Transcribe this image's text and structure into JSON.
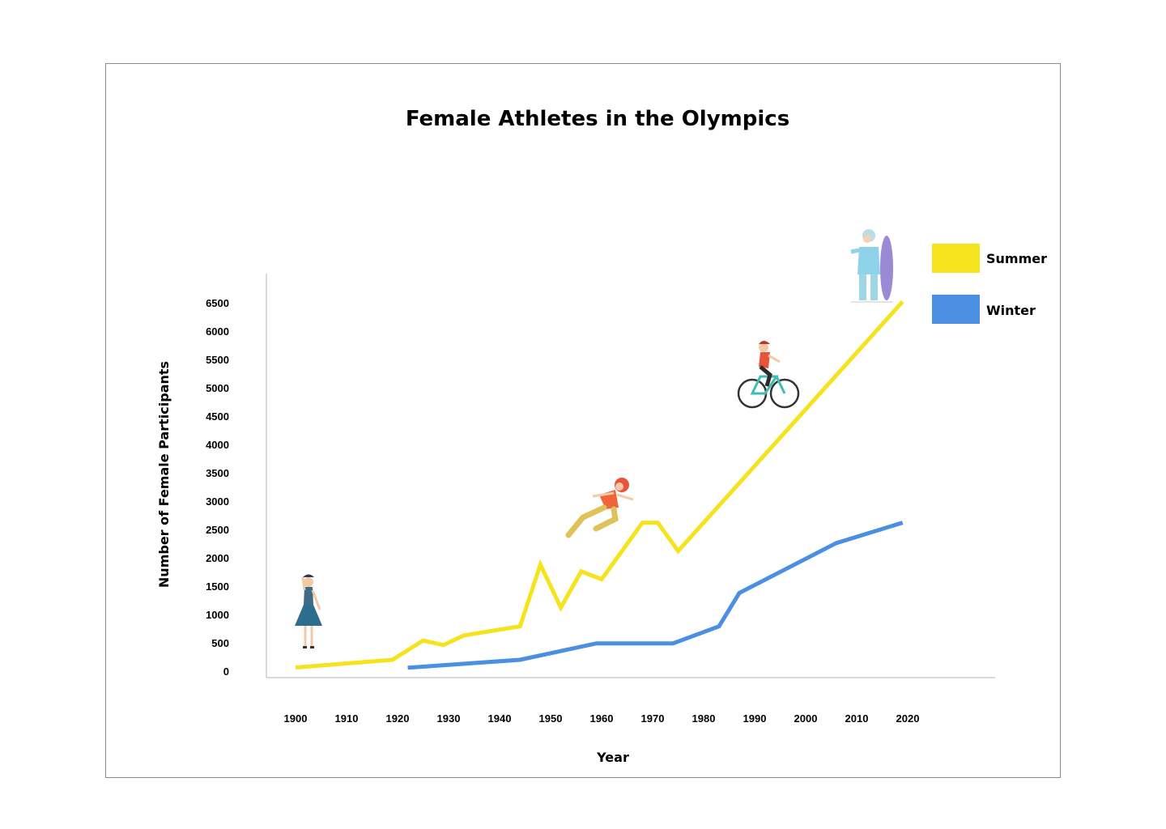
{
  "chart_data": {
    "type": "line",
    "title": "Female Athletes in the Olympics",
    "xlabel": "Year",
    "ylabel": "Number of Female Participants",
    "xlim": [
      1900,
      2020
    ],
    "ylim": [
      0,
      6500
    ],
    "x_ticks": [
      "1900",
      "1910",
      "1920",
      "1930",
      "1940",
      "1950",
      "1960",
      "1970",
      "1980",
      "1990",
      "2000",
      "2010",
      "2020"
    ],
    "y_ticks": [
      "0",
      "500",
      "1000",
      "1500",
      "2000",
      "2500",
      "3000",
      "3500",
      "4000",
      "4500",
      "5000",
      "5500",
      "6000",
      "6500"
    ],
    "grid": false,
    "legend_position": "top-right",
    "series": [
      {
        "name": "Summer",
        "color": "#f5e31d",
        "x": [
          1900,
          1919,
          1925,
          1929,
          1933,
          1944,
          1948,
          1952,
          1956,
          1960,
          1968,
          1971,
          1975,
          2019
        ],
        "y": [
          65,
          200,
          540,
          460,
          630,
          790,
          1880,
          1120,
          1760,
          1620,
          2620,
          2620,
          2120,
          6520
        ]
      },
      {
        "name": "Winter",
        "color": "#4a8fe2",
        "x": [
          1922,
          1944,
          1959,
          1974,
          1983,
          1987,
          2006,
          2019
        ],
        "y": [
          60,
          200,
          490,
          490,
          790,
          1380,
          2260,
          2620
        ]
      }
    ],
    "annotations": [
      "dancer-illustration",
      "sprinter-illustration",
      "cyclist-illustration",
      "snowboarder-illustration"
    ]
  }
}
